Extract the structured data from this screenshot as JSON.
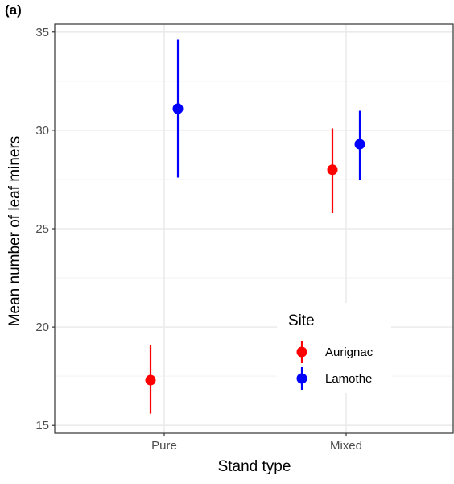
{
  "panel_label": "(a)",
  "chart_data": {
    "type": "scatter",
    "title": "",
    "xlabel": "Stand type",
    "ylabel": "Mean number of leaf miners",
    "categories": [
      "Pure",
      "Mixed"
    ],
    "ylim": [
      14.6,
      35.4
    ],
    "yticks": [
      15,
      20,
      25,
      30,
      35
    ],
    "grid": true,
    "legend": {
      "title": "Site",
      "position": "bottom-right-inside"
    },
    "series": [
      {
        "name": "Aurignac",
        "color": "#ff0000",
        "values": [
          17.3,
          28.0
        ],
        "lower": [
          15.6,
          25.8
        ],
        "upper": [
          19.1,
          30.1
        ]
      },
      {
        "name": "Lamothe",
        "color": "#0000ff",
        "values": [
          31.1,
          29.3
        ],
        "lower": [
          27.6,
          27.5
        ],
        "upper": [
          34.6,
          31.0
        ]
      }
    ]
  }
}
